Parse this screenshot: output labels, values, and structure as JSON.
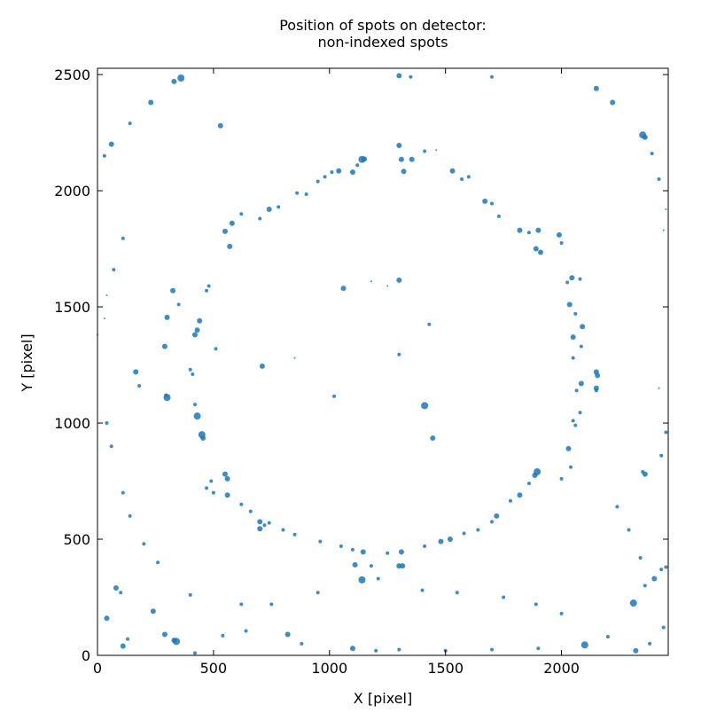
{
  "chart_data": {
    "type": "scatter",
    "title_line1": "Position of spots on detector:",
    "title_line2": "non-indexed spots",
    "xlabel": "X [pixel]",
    "ylabel": "Y [pixel]",
    "xlim": [
      0,
      2460
    ],
    "ylim": [
      0,
      2527
    ],
    "x_ticks": [
      0,
      500,
      1000,
      1500,
      2000
    ],
    "y_ticks": [
      0,
      500,
      1000,
      1500,
      2000,
      2500
    ],
    "x_tick_labels": [
      "0",
      "500",
      "1000",
      "1500",
      "2000"
    ],
    "y_tick_labels": [
      "0",
      "500",
      "1000",
      "1500",
      "2000",
      "2500"
    ],
    "grid": false,
    "marker_color": "#1f77b4",
    "series": [
      {
        "points": [
          [
            1140,
            2135,
            4
          ],
          [
            1150,
            2136,
            3
          ],
          [
            1300,
            2195,
            3
          ],
          [
            1310,
            2135,
            3
          ],
          [
            1320,
            2083,
            3
          ],
          [
            1355,
            2135,
            3
          ],
          [
            1410,
            2170,
            2
          ],
          [
            1460,
            2175,
            1
          ],
          [
            1530,
            2085,
            3
          ],
          [
            1570,
            2050,
            2
          ],
          [
            1600,
            2060,
            2
          ],
          [
            1670,
            1955,
            3
          ],
          [
            1700,
            1945,
            2
          ],
          [
            1730,
            1890,
            2
          ],
          [
            1820,
            1830,
            3
          ],
          [
            1860,
            1820,
            2
          ],
          [
            1900,
            1830,
            3
          ],
          [
            1890,
            1750,
            3
          ],
          [
            1910,
            1735,
            3
          ],
          [
            1990,
            1810,
            3
          ],
          [
            2000,
            1775,
            2
          ],
          [
            2045,
            1625,
            3
          ],
          [
            2080,
            1620,
            2
          ],
          [
            2025,
            1605,
            2
          ],
          [
            2035,
            1510,
            3
          ],
          [
            2060,
            1470,
            2
          ],
          [
            2090,
            1415,
            3
          ],
          [
            2050,
            1370,
            3
          ],
          [
            2085,
            1330,
            2
          ],
          [
            2050,
            1280,
            2
          ],
          [
            2150,
            1220,
            3
          ],
          [
            2155,
            1205,
            3
          ],
          [
            2150,
            1150,
            3
          ],
          [
            2150,
            1140,
            2
          ],
          [
            2085,
            1170,
            3
          ],
          [
            2065,
            1140,
            2
          ],
          [
            2080,
            1045,
            2
          ],
          [
            2050,
            1010,
            2
          ],
          [
            2060,
            990,
            2
          ],
          [
            2030,
            890,
            3
          ],
          [
            2040,
            810,
            2
          ],
          [
            2000,
            760,
            2
          ],
          [
            1895,
            790,
            4
          ],
          [
            1885,
            775,
            3
          ],
          [
            1860,
            740,
            2
          ],
          [
            1820,
            690,
            3
          ],
          [
            1780,
            665,
            2
          ],
          [
            1720,
            600,
            3
          ],
          [
            1700,
            575,
            2
          ],
          [
            1640,
            540,
            2
          ],
          [
            1580,
            525,
            2
          ],
          [
            1520,
            500,
            3
          ],
          [
            1480,
            490,
            3
          ],
          [
            1410,
            470,
            2
          ],
          [
            1310,
            445,
            3
          ],
          [
            1250,
            440,
            2
          ],
          [
            1145,
            445,
            3
          ],
          [
            1100,
            455,
            2
          ],
          [
            1050,
            470,
            2
          ],
          [
            960,
            490,
            2
          ],
          [
            1110,
            390,
            3
          ],
          [
            1180,
            385,
            2
          ],
          [
            1300,
            385,
            3
          ],
          [
            1315,
            385,
            3
          ],
          [
            1140,
            325,
            4
          ],
          [
            1210,
            330,
            2
          ],
          [
            850,
            520,
            2
          ],
          [
            800,
            540,
            2
          ],
          [
            740,
            570,
            2
          ],
          [
            700,
            575,
            3
          ],
          [
            700,
            545,
            3
          ],
          [
            720,
            560,
            2
          ],
          [
            660,
            620,
            2
          ],
          [
            620,
            650,
            2
          ],
          [
            560,
            690,
            3
          ],
          [
            550,
            780,
            3
          ],
          [
            560,
            760,
            3
          ],
          [
            490,
            750,
            2
          ],
          [
            470,
            720,
            2
          ],
          [
            500,
            700,
            2
          ],
          [
            450,
            950,
            4
          ],
          [
            455,
            935,
            3
          ],
          [
            430,
            1030,
            4
          ],
          [
            420,
            1080,
            2
          ],
          [
            300,
            1110,
            4
          ],
          [
            295,
            1120,
            2
          ],
          [
            180,
            1160,
            2
          ],
          [
            165,
            1220,
            3
          ],
          [
            400,
            1230,
            2
          ],
          [
            410,
            1210,
            2
          ],
          [
            290,
            1330,
            3
          ],
          [
            430,
            1400,
            3
          ],
          [
            420,
            1380,
            3
          ],
          [
            440,
            1440,
            3
          ],
          [
            300,
            1455,
            3
          ],
          [
            325,
            1570,
            3
          ],
          [
            350,
            1510,
            2
          ],
          [
            470,
            1570,
            2
          ],
          [
            480,
            1590,
            2
          ],
          [
            570,
            1760,
            3
          ],
          [
            550,
            1825,
            3
          ],
          [
            580,
            1860,
            3
          ],
          [
            620,
            1900,
            2
          ],
          [
            700,
            1880,
            2
          ],
          [
            740,
            1920,
            3
          ],
          [
            780,
            1930,
            2
          ],
          [
            860,
            1990,
            2
          ],
          [
            900,
            1985,
            2
          ],
          [
            950,
            2040,
            2
          ],
          [
            980,
            2060,
            2
          ],
          [
            1010,
            2080,
            2
          ],
          [
            1040,
            2085,
            3
          ],
          [
            1100,
            2080,
            3
          ],
          [
            1120,
            2110,
            2
          ],
          [
            1060,
            1580,
            3
          ],
          [
            1300,
            1615,
            3
          ],
          [
            1300,
            1295,
            2
          ],
          [
            1430,
            1425,
            2
          ],
          [
            710,
            1245,
            3
          ],
          [
            510,
            1320,
            2
          ],
          [
            1410,
            1075,
            4
          ],
          [
            1445,
            935,
            3
          ],
          [
            1020,
            1115,
            2
          ],
          [
            1250,
            1590,
            1
          ],
          [
            1180,
            1610,
            1
          ],
          [
            850,
            1280,
            1
          ],
          [
            360,
            2485,
            4
          ],
          [
            330,
            2470,
            3
          ],
          [
            230,
            2380,
            3
          ],
          [
            140,
            2290,
            2
          ],
          [
            60,
            2200,
            3
          ],
          [
            30,
            2150,
            2
          ],
          [
            530,
            2280,
            3
          ],
          [
            1300,
            2495,
            3
          ],
          [
            1350,
            2490,
            2
          ],
          [
            1700,
            2490,
            2
          ],
          [
            2150,
            2440,
            3
          ],
          [
            2220,
            2380,
            3
          ],
          [
            2350,
            2240,
            4
          ],
          [
            2360,
            2230,
            3
          ],
          [
            2390,
            2160,
            2
          ],
          [
            2420,
            2050,
            2
          ],
          [
            2450,
            1920,
            1
          ],
          [
            2440,
            1830,
            1
          ],
          [
            110,
            1795,
            2
          ],
          [
            70,
            1660,
            2
          ],
          [
            40,
            1550,
            1
          ],
          [
            30,
            1450,
            1
          ],
          [
            0,
            1380,
            1
          ],
          [
            2420,
            1150,
            1
          ],
          [
            2450,
            960,
            2
          ],
          [
            2430,
            860,
            2
          ],
          [
            2360,
            780,
            3
          ],
          [
            2350,
            790,
            2
          ],
          [
            80,
            290,
            3
          ],
          [
            100,
            270,
            2
          ],
          [
            40,
            160,
            3
          ],
          [
            110,
            40,
            3
          ],
          [
            130,
            70,
            2
          ],
          [
            240,
            190,
            3
          ],
          [
            290,
            90,
            3
          ],
          [
            340,
            60,
            4
          ],
          [
            330,
            65,
            3
          ],
          [
            420,
            10,
            2
          ],
          [
            540,
            85,
            2
          ],
          [
            640,
            105,
            2
          ],
          [
            820,
            90,
            3
          ],
          [
            880,
            50,
            2
          ],
          [
            1100,
            30,
            3
          ],
          [
            1200,
            20,
            2
          ],
          [
            1300,
            25,
            2
          ],
          [
            1500,
            20,
            2
          ],
          [
            1700,
            25,
            2
          ],
          [
            1900,
            30,
            2
          ],
          [
            2100,
            45,
            4
          ],
          [
            2200,
            80,
            2
          ],
          [
            2310,
            225,
            4
          ],
          [
            2320,
            20,
            3
          ],
          [
            2380,
            50,
            2
          ],
          [
            2440,
            120,
            2
          ],
          [
            2400,
            330,
            3
          ],
          [
            2360,
            300,
            2
          ],
          [
            2430,
            370,
            2
          ],
          [
            2450,
            380,
            2
          ],
          [
            2000,
            180,
            2
          ],
          [
            1890,
            220,
            2
          ],
          [
            1750,
            250,
            2
          ],
          [
            1550,
            270,
            2
          ],
          [
            1400,
            280,
            2
          ],
          [
            950,
            270,
            2
          ],
          [
            750,
            220,
            2
          ],
          [
            620,
            220,
            2
          ],
          [
            400,
            260,
            2
          ],
          [
            260,
            400,
            2
          ],
          [
            200,
            480,
            2
          ],
          [
            140,
            600,
            2
          ],
          [
            110,
            700,
            2
          ],
          [
            60,
            900,
            2
          ],
          [
            40,
            1000,
            2
          ],
          [
            2240,
            640,
            2
          ],
          [
            2290,
            540,
            2
          ],
          [
            2340,
            420,
            2
          ]
        ]
      }
    ]
  }
}
